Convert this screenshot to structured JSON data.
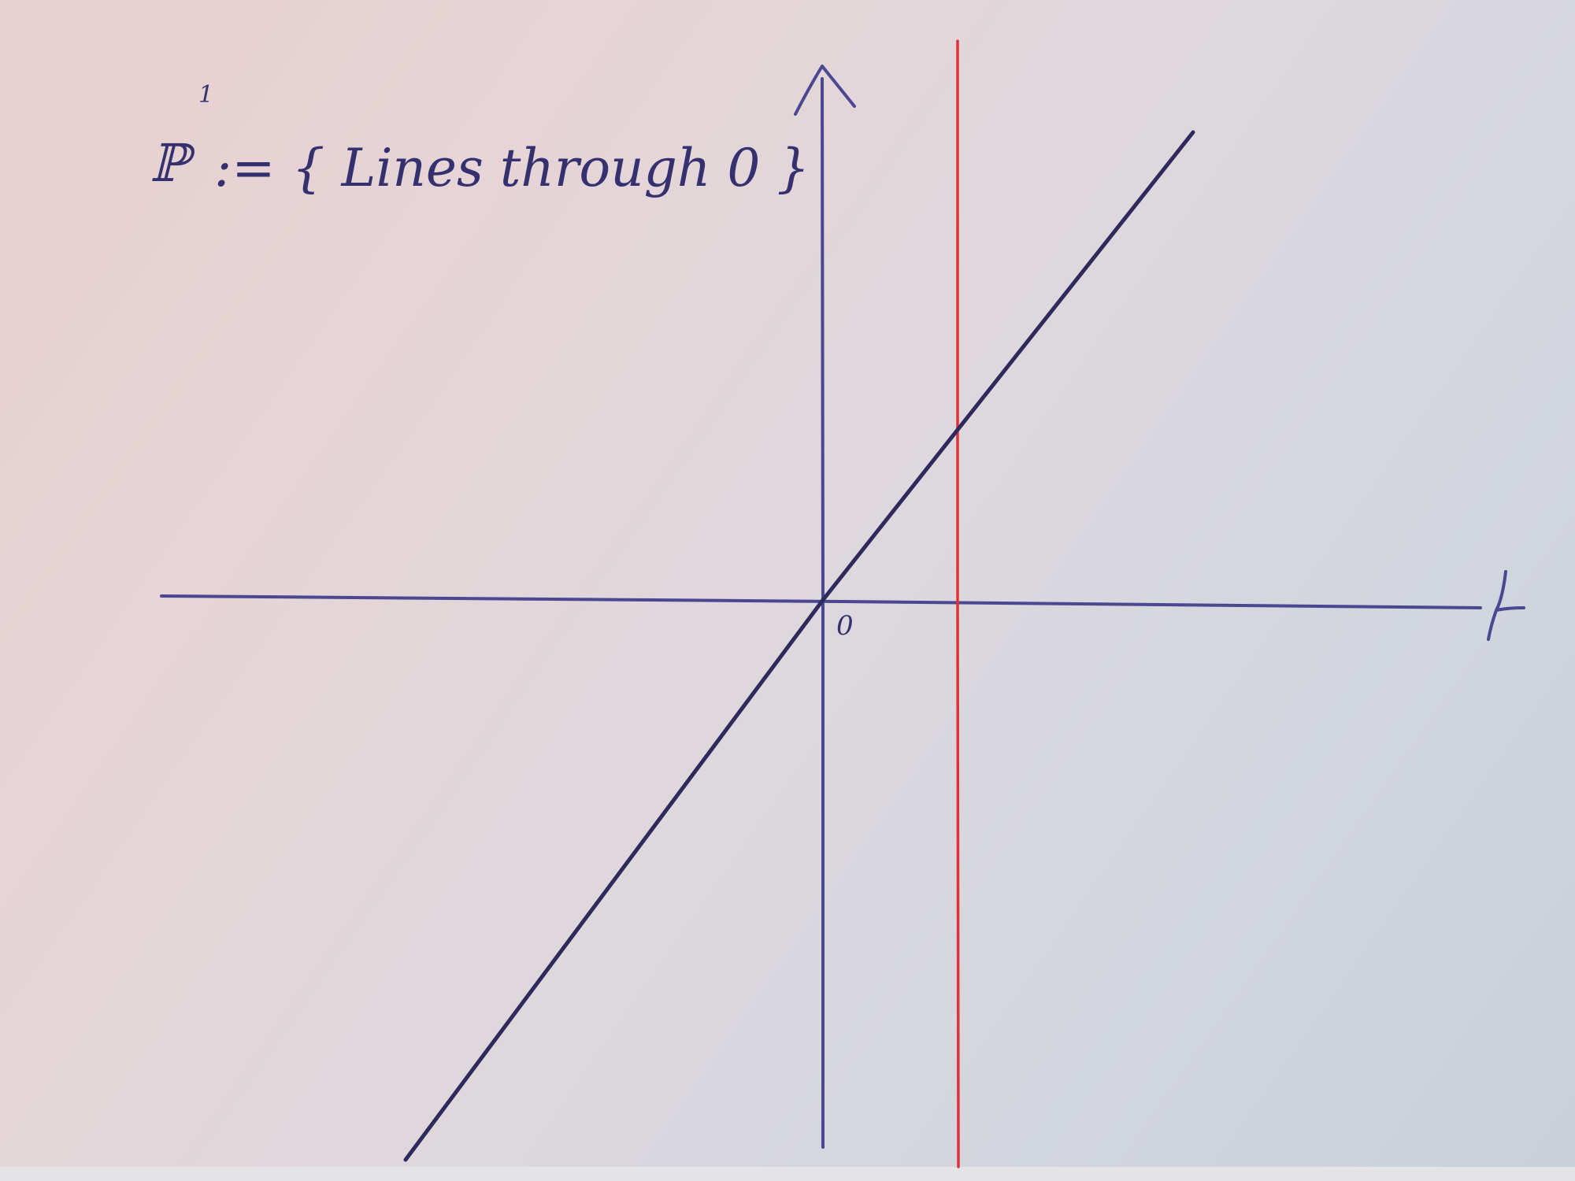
{
  "diagram": {
    "title_symbol": "ℙ",
    "title_superscript": "1",
    "title_rest": ":= { Lines through 0 }",
    "origin_label": "0",
    "colors": {
      "ink": "#35316f",
      "axis_ink": "#4b4790",
      "red_line": "#e0303a",
      "paper": "#e2d6da"
    },
    "elements": [
      "horizontal-axis with arrowhead",
      "vertical-axis with arrowhead",
      "diagonal line through origin",
      "red vertical line right of origin"
    ]
  }
}
